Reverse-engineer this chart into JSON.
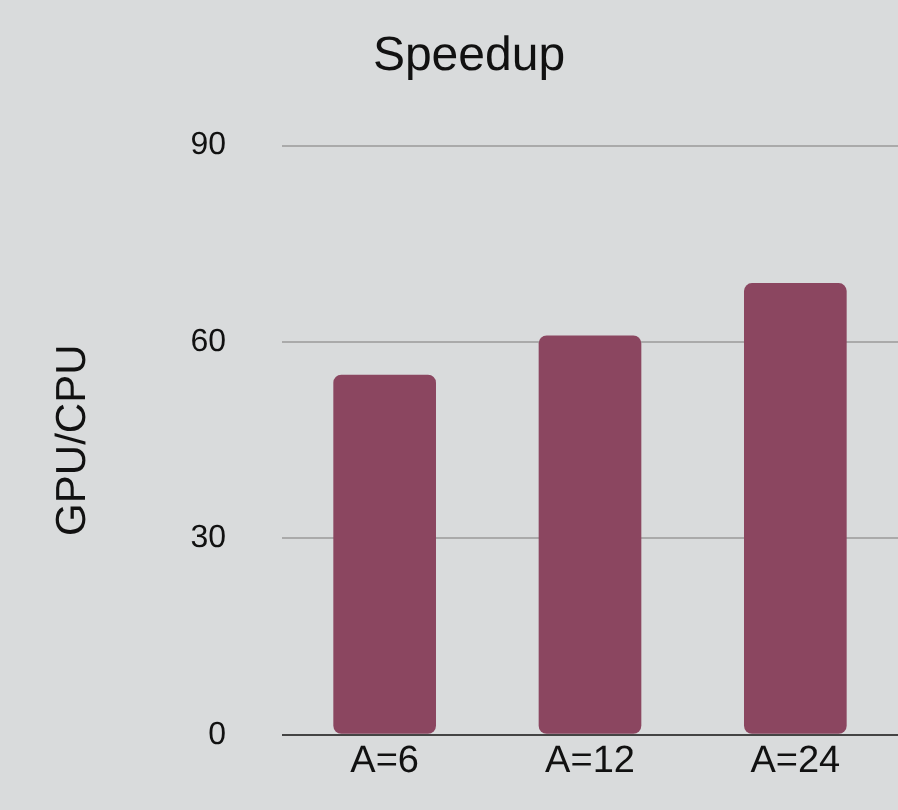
{
  "chart_data": {
    "type": "bar",
    "title": "Speedup",
    "ylabel": "GPU/CPU",
    "categories": [
      "A=6",
      "A=12",
      "A=24"
    ],
    "values": [
      55,
      61,
      69
    ],
    "color": "#8b4660",
    "ylim": [
      0,
      90
    ],
    "yticks": [
      0,
      30,
      60,
      90
    ],
    "grid": "y"
  }
}
